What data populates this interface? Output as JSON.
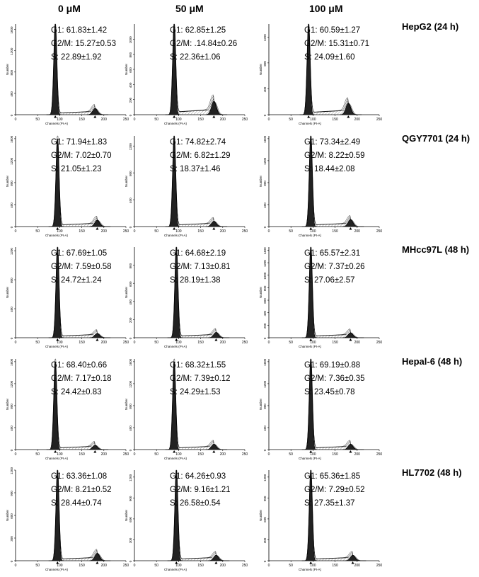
{
  "columns": [
    "0 μM",
    "50 μM",
    "100 μM"
  ],
  "rows": [
    "HepG2 (24 h)",
    "QGY7701 (24 h)",
    "MHcc97L (48 h)",
    "Hepal-6 (48 h)",
    "HL7702 (48 h)"
  ],
  "axes": {
    "xlabel": "Channels (PI-A)",
    "ylabel": "Number",
    "x_ticks": [
      "0",
      "50",
      "100",
      "150",
      "200",
      "250"
    ]
  },
  "chart_data": [
    {
      "type": "area",
      "row": "HepG2 (24 h)",
      "column": "0 μM",
      "stats": {
        "g1": "G1: 61.83±1.42",
        "g2m": "G2/M: 15.27±0.53",
        "s": "S: 22.89±1.92"
      },
      "g1_peak_channel": 90,
      "g2_peak_channel": 180,
      "g1_height": 1700,
      "g2_height": 120,
      "ylim": [
        0,
        1700
      ],
      "y_ticks": [
        "0",
        "400",
        "800",
        "1200",
        "1600"
      ]
    },
    {
      "type": "area",
      "row": "HepG2 (24 h)",
      "column": "50 μM",
      "stats": {
        "g1": "G1: 62.85±1.25",
        "g2m": "G2/M: .14.84±0.26",
        "s": "S: 22.36±1.06"
      },
      "g1_peak_channel": 90,
      "g2_peak_channel": 180,
      "g1_height": 1200,
      "g2_height": 180,
      "ylim": [
        0,
        1200
      ],
      "y_ticks": [
        "0",
        "200",
        "400",
        "600",
        "800",
        "1000"
      ]
    },
    {
      "type": "area",
      "row": "HepG2 (24 h)",
      "column": "100 μM",
      "stats": {
        "g1": "G1: 60.59±1.27",
        "g2m": "G2/M: 15.31±0.71",
        "s": "S: 24.09±1.60"
      },
      "g1_peak_channel": 90,
      "g2_peak_channel": 180,
      "g1_height": 1400,
      "g2_height": 180,
      "ylim": [
        0,
        1400
      ],
      "y_ticks": [
        "0",
        "400",
        "800",
        "1200"
      ]
    },
    {
      "type": "area",
      "row": "QGY7701 (24 h)",
      "column": "0 μM",
      "stats": {
        "g1": "G1: 71.94±1.83",
        "g2m": "G2/M: 7.02±0.70",
        "s": "S: 21.05±1.23"
      },
      "g1_peak_channel": 95,
      "g2_peak_channel": 185,
      "g1_height": 1600,
      "g2_height": 120,
      "ylim": [
        0,
        1650
      ],
      "y_ticks": [
        "0",
        "400",
        "800",
        "1200",
        "1600"
      ]
    },
    {
      "type": "area",
      "row": "QGY7701 (24 h)",
      "column": "50 μM",
      "stats": {
        "g1": "G1: 74.82±2.74",
        "g2m": "G2/M: 6.82±1.29",
        "s": "S: 18.37±1.46"
      },
      "g1_peak_channel": 90,
      "g2_peak_channel": 180,
      "g1_height": 1350,
      "g2_height": 80,
      "ylim": [
        0,
        1350
      ],
      "y_ticks": [
        "0",
        "400",
        "800",
        "1200"
      ]
    },
    {
      "type": "area",
      "row": "QGY7701 (24 h)",
      "column": "100 μM",
      "stats": {
        "g1": "G1: 73.34±2.49",
        "g2m": "G2/M: 8.22±0.59",
        "s": "S: 18.44±2.08"
      },
      "g1_peak_channel": 95,
      "g2_peak_channel": 185,
      "g1_height": 1650,
      "g2_height": 130,
      "ylim": [
        0,
        1650
      ],
      "y_ticks": [
        "0",
        "400",
        "800",
        "1200",
        "1600"
      ]
    },
    {
      "type": "area",
      "row": "MHcc97L (48 h)",
      "column": "0 μM",
      "stats": {
        "g1": "G1: 67.69±1.05",
        "g2m": "G2/M: 7.59±0.58",
        "s": "S: 24.72±1.24"
      },
      "g1_peak_channel": 95,
      "g2_peak_channel": 185,
      "g1_height": 1250,
      "g2_height": 60,
      "ylim": [
        0,
        1250
      ],
      "y_ticks": [
        "0",
        "400",
        "800",
        "1200"
      ]
    },
    {
      "type": "area",
      "row": "MHcc97L (48 h)",
      "column": "50 μM",
      "stats": {
        "g1": "G1: 64.68±2.19",
        "g2m": "G2/M: 7.13±0.81",
        "s": "S: 28.19±1.38"
      },
      "g1_peak_channel": 95,
      "g2_peak_channel": 185,
      "g1_height": 1000,
      "g2_height": 60,
      "ylim": [
        0,
        1000
      ],
      "y_ticks": [
        "0",
        "200",
        "400",
        "600",
        "800"
      ]
    },
    {
      "type": "area",
      "row": "MHcc97L (48 h)",
      "column": "100 μM",
      "stats": {
        "g1": "G1: 65.57±2.31",
        "g2m": "G2/M: 7.37±0.26",
        "s": "S: 27.06±2.57"
      },
      "g1_peak_channel": 95,
      "g2_peak_channel": 185,
      "g1_height": 1450,
      "g2_height": 80,
      "ylim": [
        0,
        1450
      ],
      "y_ticks": [
        "0",
        "200",
        "400",
        "600",
        "800",
        "1000",
        "1200",
        "1400"
      ]
    },
    {
      "type": "area",
      "row": "Hepal-6 (48 h)",
      "column": "0 μM",
      "stats": {
        "g1": "G1: 68.40±0.66",
        "g2m": "G2/M: 7.17±0.18",
        "s": "S: 24.42±0.83"
      },
      "g1_peak_channel": 90,
      "g2_peak_channel": 180,
      "g1_height": 1600,
      "g2_height": 80,
      "ylim": [
        0,
        1650
      ],
      "y_ticks": [
        "0",
        "400",
        "800",
        "1200",
        "1600"
      ]
    },
    {
      "type": "area",
      "row": "Hepal-6 (48 h)",
      "column": "50 μM",
      "stats": {
        "g1": "G1: 68.32±1.55",
        "g2m": "G2/M: 7.39±0.12",
        "s": "S: 24.29±1.53"
      },
      "g1_peak_channel": 90,
      "g2_peak_channel": 180,
      "g1_height": 1600,
      "g2_height": 100,
      "ylim": [
        0,
        1650
      ],
      "y_ticks": [
        "0",
        "400",
        "800",
        "1200",
        "1600"
      ]
    },
    {
      "type": "area",
      "row": "Hepal-6 (48 h)",
      "column": "100 μM",
      "stats": {
        "g1": "G1: 69.19±0.88",
        "g2m": "G2/M: 7.36±0.35",
        "s": "S: 23.45±0.78"
      },
      "g1_peak_channel": 95,
      "g2_peak_channel": 185,
      "g1_height": 1650,
      "g2_height": 100,
      "ylim": [
        0,
        1650
      ],
      "y_ticks": [
        "0",
        "400",
        "800",
        "1200",
        "1600"
      ]
    },
    {
      "type": "area",
      "row": "HL7702 (48 h)",
      "column": "0 μM",
      "stats": {
        "g1": "G1: 63.36±1.08",
        "g2m": "G2/M: 8.21±0.52",
        "s": "S: 28.44±0.74"
      },
      "g1_peak_channel": 95,
      "g2_peak_channel": 185,
      "g1_height": 1200,
      "g2_height": 100,
      "ylim": [
        0,
        1200
      ],
      "y_ticks": [
        "0",
        "300",
        "600",
        "900",
        "1200"
      ]
    },
    {
      "type": "area",
      "row": "HL7702 (48 h)",
      "column": "50 μM",
      "stats": {
        "g1": "G1: 64.26±0.93",
        "g2m": "G2/M: 9.16±1.21",
        "s": "S: 26.58±0.54"
      },
      "g1_peak_channel": 95,
      "g2_peak_channel": 185,
      "g1_height": 1300,
      "g2_height": 80,
      "ylim": [
        0,
        1300
      ],
      "y_ticks": [
        "0",
        "300",
        "600",
        "900",
        "1200"
      ]
    },
    {
      "type": "area",
      "row": "HL7702 (48 h)",
      "column": "100 μM",
      "stats": {
        "g1": "G1: 65.36±1.85",
        "g2m": "G2/M: 7.29±0.52",
        "s": "S: 27.35±1.37"
      },
      "g1_peak_channel": 95,
      "g2_peak_channel": 190,
      "g1_height": 1300,
      "g2_height": 80,
      "ylim": [
        0,
        1300
      ],
      "y_ticks": [
        "0",
        "300",
        "600",
        "900",
        "1200"
      ]
    }
  ]
}
